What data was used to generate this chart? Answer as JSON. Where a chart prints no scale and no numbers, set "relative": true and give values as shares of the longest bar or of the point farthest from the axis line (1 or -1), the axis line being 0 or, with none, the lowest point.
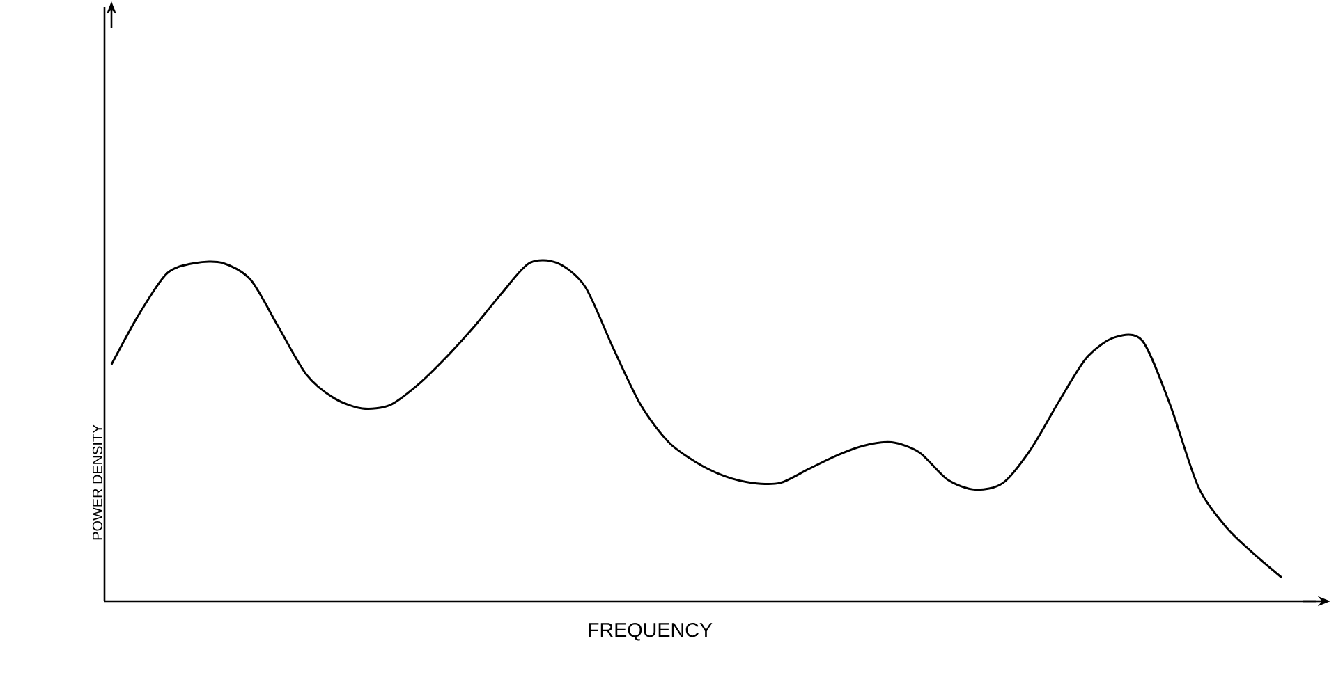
{
  "chart_data": {
    "type": "line",
    "relative": true,
    "xlabel": "FREQUENCY",
    "ylabel": "POWER DENSITY",
    "categories": [
      null,
      null,
      null,
      null,
      null,
      null,
      null,
      null,
      null,
      null,
      null,
      null,
      null,
      null,
      null,
      null,
      null,
      null,
      null,
      null,
      null,
      null,
      null,
      null,
      null,
      null,
      null,
      null,
      null,
      null,
      null,
      null,
      null,
      null,
      null,
      null,
      null,
      null,
      null,
      null,
      null,
      null,
      null
    ],
    "series": [
      {
        "color": "#000000",
        "values": [
          0.7,
          0.85,
          0.97,
          1.0,
          1.0,
          0.95,
          0.81,
          0.67,
          0.6,
          0.57,
          0.58,
          0.64,
          0.72,
          0.81,
          0.91,
          1.0,
          1.0,
          0.93,
          0.75,
          0.58,
          0.47,
          0.41,
          0.37,
          0.35,
          0.35,
          0.39,
          0.43,
          0.46,
          0.47,
          0.44,
          0.36,
          0.33,
          0.35,
          0.45,
          0.59,
          0.72,
          0.78,
          0.77,
          0.58,
          0.34,
          0.22,
          0.14,
          0.07
        ]
      }
    ],
    "marker": "none",
    "line_style": "solid"
  }
}
